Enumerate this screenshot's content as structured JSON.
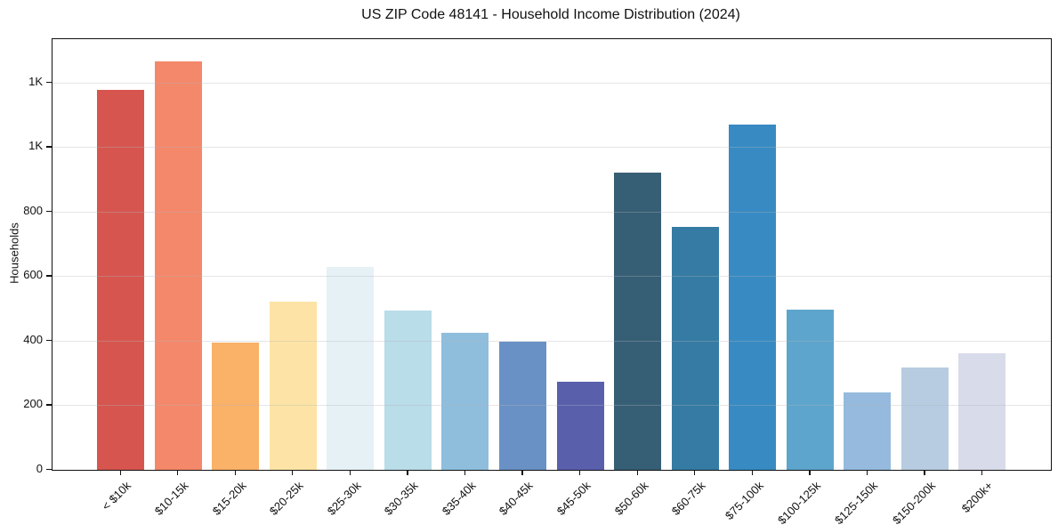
{
  "chart_data": {
    "type": "bar",
    "title": "US ZIP Code 48141 - Household Income Distribution (2024)",
    "ylabel": "Households",
    "xlabel": "",
    "categories": [
      "< $10k",
      "$10-15k",
      "$15-20k",
      "$20-25k",
      "$25-30k",
      "$30-35k",
      "$35-40k",
      "$40-45k",
      "$45-50k",
      "$50-60k",
      "$60-75k",
      "$75-100k",
      "$100-125k",
      "$125-150k",
      "$150-200k",
      "$200k+"
    ],
    "values": [
      1178,
      1266,
      395,
      520,
      630,
      495,
      426,
      398,
      273,
      921,
      753,
      1069,
      497,
      240,
      317,
      362
    ],
    "bar_colors": [
      "#d6564f",
      "#f4886a",
      "#fab168",
      "#fde3a5",
      "#e6f1f6",
      "#b9dde9",
      "#8fbedd",
      "#6991c5",
      "#5a5fac",
      "#365f75",
      "#357ba3",
      "#378bc2",
      "#5da5cd",
      "#95badd",
      "#b7cce1",
      "#d8dbe9"
    ],
    "ylim": [
      0,
      1335
    ],
    "yticks": [
      {
        "value": 0,
        "label": "0"
      },
      {
        "value": 200,
        "label": "200"
      },
      {
        "value": 400,
        "label": "400"
      },
      {
        "value": 600,
        "label": "600"
      },
      {
        "value": 800,
        "label": "800"
      },
      {
        "value": 1000,
        "label": "1K"
      },
      {
        "value": 1200,
        "label": "1K"
      }
    ],
    "grid": "horizontal",
    "legend": "none",
    "colors": {
      "background": "#ffffff",
      "spine": "#111111",
      "grid": "#e8e8e8",
      "text": "#111111"
    }
  }
}
